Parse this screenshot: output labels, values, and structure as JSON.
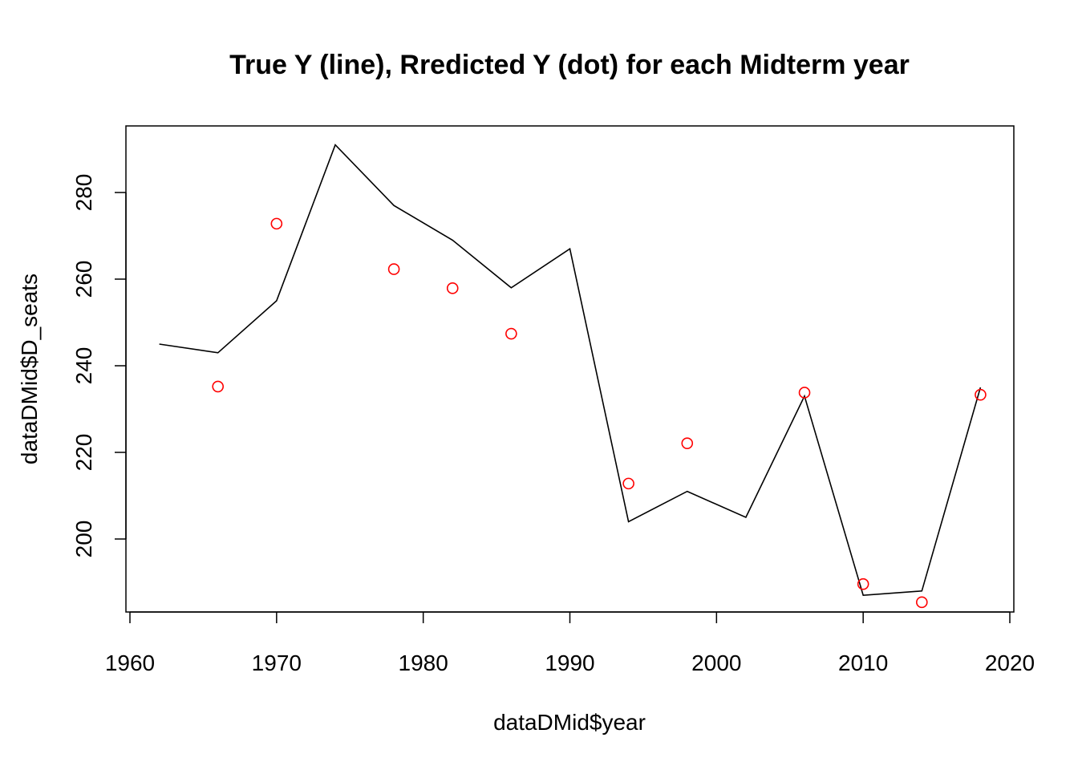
{
  "chart_data": {
    "type": "line",
    "title": "True Y (line), Rredicted Y (dot) for each Midterm year",
    "xlabel": "dataDMid$year",
    "ylabel": "dataDMid$D_seats",
    "xlim": [
      1960,
      2020
    ],
    "ylim": [
      183,
      295
    ],
    "x_ticks": [
      1960,
      1970,
      1980,
      1990,
      2000,
      2010,
      2020
    ],
    "y_ticks": [
      200,
      220,
      240,
      260,
      280
    ],
    "grid": false,
    "series": [
      {
        "type": "line",
        "color": "#000000",
        "x": [
          1962,
          1966,
          1970,
          1974,
          1978,
          1982,
          1986,
          1990,
          1994,
          1998,
          2002,
          2006,
          2010,
          2014,
          2018
        ],
        "y": [
          245,
          243,
          255,
          291,
          277,
          269,
          258,
          267,
          204,
          211,
          205,
          233,
          187,
          188,
          235
        ]
      },
      {
        "type": "scatter",
        "color": "#ff0000",
        "x": [
          1966,
          1970,
          1978,
          1982,
          1986,
          1994,
          1998,
          2006,
          2010,
          2014,
          2018
        ],
        "y": [
          235.2,
          272.8,
          262.3,
          257.9,
          247.4,
          212.8,
          222.1,
          233.8,
          189.6,
          185.4,
          233.3
        ]
      }
    ]
  }
}
